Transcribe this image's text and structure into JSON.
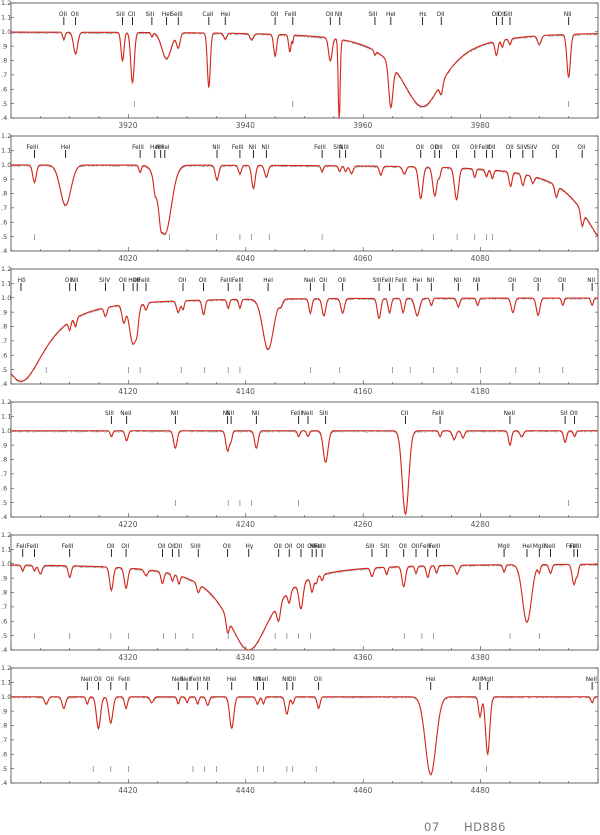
{
  "footer": {
    "number": "07",
    "star": "HD886"
  },
  "colors": {
    "observed": "#8a8a8a",
    "model": "#d8261b",
    "axis": "#444444"
  },
  "chart_data": [
    {
      "type": "line",
      "xlim": [
        3900,
        4000
      ],
      "ylim": [
        0.4,
        1.2
      ],
      "yticks": [
        0.4,
        0.5,
        0.6,
        0.7,
        0.8,
        0.9,
        1.0,
        1.1,
        1.2
      ],
      "xticks": [
        3920,
        3940,
        3960,
        3980
      ],
      "lines": [
        {
          "x": 3909.0,
          "label": "OII",
          "w": 0.2,
          "d": 0.05
        },
        {
          "x": 3911.0,
          "label": "OII",
          "w": 0.35,
          "d": 0.15
        },
        {
          "x": 3919.0,
          "label": "SiII",
          "w": 0.25,
          "d": 0.2
        },
        {
          "x": 3920.7,
          "label": "CII",
          "w": 0.3,
          "d": 0.35
        },
        {
          "x": 3924.0,
          "label": "SiII",
          "w": 0.15,
          "d": 0.03
        },
        {
          "x": 3926.5,
          "label": "HeI",
          "w": 0.8,
          "d": 0.18
        },
        {
          "x": 3928.5,
          "label": "SeIII",
          "w": 0.3,
          "d": 0.1
        },
        {
          "x": 3933.7,
          "label": "CaII",
          "w": 0.25,
          "d": 0.38
        },
        {
          "x": 3936.5,
          "label": "HeI",
          "w": 0.25,
          "d": 0.04
        },
        {
          "x": 3945.0,
          "label": "OII",
          "w": 0.25,
          "d": 0.15
        },
        {
          "x": 3948.0,
          "label": "FeIII",
          "w": 0.1,
          "d": 0.05
        },
        {
          "x": 3954.4,
          "label": "OII",
          "w": 0.3,
          "d": 0.16
        },
        {
          "x": 3956.0,
          "label": "NII",
          "w": 0.2,
          "d": 0.06
        },
        {
          "x": 3962.0,
          "label": "SIII",
          "w": 0.15,
          "d": 0.03
        },
        {
          "x": 3964.7,
          "label": "HeI",
          "w": 0.35,
          "d": 0.3
        },
        {
          "x": 3970.1,
          "label": "Hε",
          "w": 4.5,
          "d": 0.52
        },
        {
          "x": 3973.3,
          "label": "OII",
          "w": 0.25,
          "d": 0.08
        },
        {
          "x": 3982.7,
          "label": "OII",
          "w": 0.25,
          "d": 0.1
        },
        {
          "x": 3983.7,
          "label": "OII",
          "w": 0.2,
          "d": 0.05
        },
        {
          "x": 3985.0,
          "label": "SIII",
          "w": 0.2,
          "d": 0.04
        },
        {
          "x": 3995.0,
          "label": "NII",
          "w": 0.3,
          "d": 0.3
        }
      ],
      "extra_dips": [
        [
          3955.9,
          0.15,
          0.55
        ],
        [
          3947.5,
          0.2,
          0.12
        ],
        [
          3990.0,
          0.3,
          0.06
        ],
        [
          3941.0,
          0.3,
          0.04
        ]
      ],
      "marks": [
        3921,
        3948,
        3995
      ]
    },
    {
      "type": "line",
      "xlim": [
        4000,
        4100
      ],
      "ylim": [
        0.4,
        1.2
      ],
      "yticks": [
        0.4,
        0.5,
        0.6,
        0.7,
        0.8,
        0.9,
        1.0,
        1.1,
        1.2
      ],
      "xticks": [
        4020,
        4040,
        4060,
        4080
      ],
      "lines": [
        {
          "x": 4004.0,
          "label": "FeIII",
          "w": 0.3,
          "d": 0.12
        },
        {
          "x": 4009.3,
          "label": "HeI",
          "w": 0.9,
          "d": 0.28
        },
        {
          "x": 4022.0,
          "label": "FeIII",
          "w": 0.2,
          "d": 0.05
        },
        {
          "x": 4026.2,
          "label": "HeI",
          "w": 1.1,
          "d": 0.48
        },
        {
          "x": 4024.5,
          "label": "HeI",
          "w": 0.2,
          "d": 0.06
        },
        {
          "x": 4025.5,
          "label": "NII",
          "w": 0.2,
          "d": 0.06
        },
        {
          "x": 4035.1,
          "label": "NII",
          "w": 0.3,
          "d": 0.1
        },
        {
          "x": 4039.0,
          "label": "FeIII",
          "w": 0.25,
          "d": 0.06
        },
        {
          "x": 4041.3,
          "label": "NII",
          "w": 0.3,
          "d": 0.16
        },
        {
          "x": 4043.5,
          "label": "NII",
          "w": 0.3,
          "d": 0.08
        },
        {
          "x": 4053.0,
          "label": "FeIII",
          "w": 0.2,
          "d": 0.04
        },
        {
          "x": 4056.0,
          "label": "SIII",
          "w": 0.2,
          "d": 0.04
        },
        {
          "x": 4057.0,
          "label": "NIII",
          "w": 0.2,
          "d": 0.04
        },
        {
          "x": 4063.0,
          "label": "OII",
          "w": 0.25,
          "d": 0.06
        },
        {
          "x": 4069.8,
          "label": "OII",
          "w": 0.35,
          "d": 0.22
        },
        {
          "x": 4072.2,
          "label": "OII",
          "w": 0.35,
          "d": 0.2
        },
        {
          "x": 4073.0,
          "label": "OII",
          "w": 0.2,
          "d": 0.06
        },
        {
          "x": 4075.9,
          "label": "OII",
          "w": 0.35,
          "d": 0.22
        },
        {
          "x": 4079.0,
          "label": "OII",
          "w": 0.2,
          "d": 0.06
        },
        {
          "x": 4081.0,
          "label": "FeIII",
          "w": 0.2,
          "d": 0.05
        },
        {
          "x": 4082.0,
          "label": "OII",
          "w": 0.2,
          "d": 0.06
        },
        {
          "x": 4085.1,
          "label": "OII",
          "w": 0.25,
          "d": 0.1
        },
        {
          "x": 4087.2,
          "label": "SiIV",
          "w": 0.25,
          "d": 0.08
        },
        {
          "x": 4088.9,
          "label": "SiIV",
          "w": 0.25,
          "d": 0.05
        },
        {
          "x": 4092.9,
          "label": "OII",
          "w": 0.25,
          "d": 0.08
        },
        {
          "x": 4097.3,
          "label": "OII",
          "w": 0.25,
          "d": 0.1
        }
      ],
      "extra_dips": [
        [
          4101.7,
          5.0,
          0.55
        ],
        [
          4058.0,
          0.3,
          0.05
        ],
        [
          4067.0,
          0.3,
          0.05
        ]
      ],
      "marks": [
        4004,
        4027,
        4035,
        4039,
        4041,
        4044,
        4053,
        4072,
        4076,
        4079,
        4081,
        4082
      ]
    },
    {
      "type": "line",
      "xlim": [
        4100,
        4200
      ],
      "ylim": [
        0.4,
        1.2
      ],
      "yticks": [
        0.4,
        0.5,
        0.6,
        0.7,
        0.8,
        0.9,
        1.0,
        1.1,
        1.2
      ],
      "xticks": [
        4120,
        4140,
        4160,
        4180
      ],
      "lines": [
        {
          "x": 4101.7,
          "label": "Hδ",
          "w": 5.0,
          "d": 0.58
        },
        {
          "x": 4110.0,
          "label": "OII",
          "w": 0.2,
          "d": 0.06
        },
        {
          "x": 4111.0,
          "label": "NII",
          "w": 0.2,
          "d": 0.06
        },
        {
          "x": 4116.1,
          "label": "SiIV",
          "w": 0.25,
          "d": 0.06
        },
        {
          "x": 4119.2,
          "label": "OII",
          "w": 0.3,
          "d": 0.12
        },
        {
          "x": 4120.8,
          "label": "HeI",
          "w": 0.6,
          "d": 0.28
        },
        {
          "x": 4121.5,
          "label": "OII",
          "w": 0.25,
          "d": 0.08
        },
        {
          "x": 4123.0,
          "label": "FeIII",
          "w": 0.25,
          "d": 0.05
        },
        {
          "x": 4129.3,
          "label": "OII",
          "w": 0.2,
          "d": 0.06
        },
        {
          "x": 4132.8,
          "label": "OII",
          "w": 0.25,
          "d": 0.1
        },
        {
          "x": 4137.0,
          "label": "FeIII",
          "w": 0.2,
          "d": 0.06
        },
        {
          "x": 4139.0,
          "label": "FeIII",
          "w": 0.2,
          "d": 0.06
        },
        {
          "x": 4143.8,
          "label": "HeI",
          "w": 0.9,
          "d": 0.35
        },
        {
          "x": 4151.0,
          "label": "NeII",
          "w": 0.25,
          "d": 0.1
        },
        {
          "x": 4153.3,
          "label": "OII",
          "w": 0.3,
          "d": 0.12
        },
        {
          "x": 4156.5,
          "label": "OII",
          "w": 0.3,
          "d": 0.1
        },
        {
          "x": 4162.7,
          "label": "SIII",
          "w": 0.3,
          "d": 0.14
        },
        {
          "x": 4164.5,
          "label": "FeIII",
          "w": 0.25,
          "d": 0.1
        },
        {
          "x": 4166.8,
          "label": "FeIII",
          "w": 0.25,
          "d": 0.1
        },
        {
          "x": 4169.2,
          "label": "HeI",
          "w": 0.4,
          "d": 0.12
        },
        {
          "x": 4171.6,
          "label": "NII",
          "w": 0.2,
          "d": 0.05
        },
        {
          "x": 4176.2,
          "label": "NII",
          "w": 0.25,
          "d": 0.06
        },
        {
          "x": 4179.5,
          "label": "NII",
          "w": 0.2,
          "d": 0.05
        },
        {
          "x": 4185.5,
          "label": "OII",
          "w": 0.3,
          "d": 0.1
        },
        {
          "x": 4189.8,
          "label": "OII",
          "w": 0.3,
          "d": 0.12
        },
        {
          "x": 4194.0,
          "label": "OII",
          "w": 0.2,
          "d": 0.05
        },
        {
          "x": 4199.0,
          "label": "NII",
          "w": 0.2,
          "d": 0.05
        }
      ],
      "extra_dips": [
        [
          4128.5,
          0.3,
          0.08
        ],
        [
          4146.0,
          0.3,
          0.04
        ]
      ],
      "marks": [
        4106,
        4120,
        4122,
        4129,
        4133,
        4137,
        4139,
        4151,
        4156,
        4165,
        4168,
        4172,
        4176,
        4180,
        4186,
        4190,
        4194
      ]
    },
    {
      "type": "line",
      "xlim": [
        4200,
        4300
      ],
      "ylim": [
        0.4,
        1.2
      ],
      "yticks": [
        0.4,
        0.5,
        0.6,
        0.7,
        0.8,
        0.9,
        1.0,
        1.1,
        1.2
      ],
      "xticks": [
        4220,
        4240,
        4260,
        4280
      ],
      "lines": [
        {
          "x": 4217.1,
          "label": "SIII",
          "w": 0.2,
          "d": 0.04
        },
        {
          "x": 4219.7,
          "label": "NeII",
          "w": 0.25,
          "d": 0.07
        },
        {
          "x": 4228.0,
          "label": "NII",
          "w": 0.3,
          "d": 0.12
        },
        {
          "x": 4236.9,
          "label": "NII",
          "w": 0.3,
          "d": 0.14
        },
        {
          "x": 4237.5,
          "label": "NII",
          "w": 0.2,
          "d": 0.06
        },
        {
          "x": 4241.8,
          "label": "NII",
          "w": 0.3,
          "d": 0.12
        },
        {
          "x": 4249.0,
          "label": "FeIII",
          "w": 0.2,
          "d": 0.04
        },
        {
          "x": 4250.6,
          "label": "NeII",
          "w": 0.2,
          "d": 0.04
        },
        {
          "x": 4253.6,
          "label": "SIII",
          "w": 0.4,
          "d": 0.22
        },
        {
          "x": 4267.2,
          "label": "CII",
          "w": 0.55,
          "d": 0.58
        },
        {
          "x": 4273.1,
          "label": "FeIII",
          "w": 0.2,
          "d": 0.04
        },
        {
          "x": 4285.0,
          "label": "NeII",
          "w": 0.25,
          "d": 0.1
        },
        {
          "x": 4294.4,
          "label": "SII",
          "w": 0.25,
          "d": 0.08
        },
        {
          "x": 4296.0,
          "label": "OII",
          "w": 0.2,
          "d": 0.04
        }
      ],
      "extra_dips": [
        [
          4275.5,
          0.3,
          0.06
        ],
        [
          4277.0,
          0.25,
          0.05
        ],
        [
          4287.0,
          0.3,
          0.04
        ]
      ],
      "marks": [
        4228,
        4237,
        4239,
        4241,
        4249,
        4295
      ]
    },
    {
      "type": "line",
      "xlim": [
        4300,
        4400
      ],
      "ylim": [
        0.4,
        1.2
      ],
      "yticks": [
        0.4,
        0.5,
        0.6,
        0.7,
        0.8,
        0.9,
        1.0,
        1.1,
        1.2
      ],
      "xticks": [
        4320,
        4340,
        4360,
        4380
      ],
      "lines": [
        {
          "x": 4302.0,
          "label": "FeII",
          "w": 0.2,
          "d": 0.04
        },
        {
          "x": 4304.0,
          "label": "FeIII",
          "w": 0.2,
          "d": 0.04
        },
        {
          "x": 4310.0,
          "label": "FeIII",
          "w": 0.25,
          "d": 0.08
        },
        {
          "x": 4317.1,
          "label": "OII",
          "w": 0.3,
          "d": 0.16
        },
        {
          "x": 4319.6,
          "label": "OII",
          "w": 0.3,
          "d": 0.14
        },
        {
          "x": 4325.8,
          "label": "OII",
          "w": 0.25,
          "d": 0.08
        },
        {
          "x": 4327.5,
          "label": "OII",
          "w": 0.2,
          "d": 0.05
        },
        {
          "x": 4328.6,
          "label": "OII",
          "w": 0.2,
          "d": 0.06
        },
        {
          "x": 4331.9,
          "label": "SiIII",
          "w": 0.25,
          "d": 0.06
        },
        {
          "x": 4336.9,
          "label": "OII",
          "w": 0.25,
          "d": 0.1
        },
        {
          "x": 4340.5,
          "label": "Hγ",
          "w": 4.5,
          "d": 0.6
        },
        {
          "x": 4345.6,
          "label": "OII",
          "w": 0.3,
          "d": 0.12
        },
        {
          "x": 4347.4,
          "label": "OII",
          "w": 0.25,
          "d": 0.08
        },
        {
          "x": 4349.4,
          "label": "OII",
          "w": 0.35,
          "d": 0.18
        },
        {
          "x": 4351.3,
          "label": "OII",
          "w": 0.25,
          "d": 0.1
        },
        {
          "x": 4352.0,
          "label": "NeII",
          "w": 0.2,
          "d": 0.05
        },
        {
          "x": 4353.0,
          "label": "FeIII",
          "w": 0.2,
          "d": 0.04
        },
        {
          "x": 4361.5,
          "label": "SIII",
          "w": 0.25,
          "d": 0.06
        },
        {
          "x": 4364.0,
          "label": "SIII",
          "w": 0.2,
          "d": 0.05
        },
        {
          "x": 4366.9,
          "label": "OII",
          "w": 0.3,
          "d": 0.14
        },
        {
          "x": 4369.0,
          "label": "OII",
          "w": 0.2,
          "d": 0.05
        },
        {
          "x": 4371.0,
          "label": "FeIII",
          "w": 0.25,
          "d": 0.08
        },
        {
          "x": 4372.5,
          "label": "FeIII",
          "w": 0.2,
          "d": 0.05
        },
        {
          "x": 4384.0,
          "label": "MgII",
          "w": 0.2,
          "d": 0.05
        },
        {
          "x": 4387.9,
          "label": "HeI",
          "w": 0.75,
          "d": 0.4
        },
        {
          "x": 4390.0,
          "label": "MgII",
          "w": 0.2,
          "d": 0.05
        },
        {
          "x": 4391.9,
          "label": "NeII",
          "w": 0.25,
          "d": 0.06
        },
        {
          "x": 4395.9,
          "label": "FeIII",
          "w": 0.3,
          "d": 0.14
        },
        {
          "x": 4396.5,
          "label": "FeIII",
          "w": 0.2,
          "d": 0.06
        }
      ],
      "extra_dips": [
        [
          4323.0,
          0.3,
          0.04
        ],
        [
          4376.0,
          0.3,
          0.06
        ],
        [
          4305.0,
          0.3,
          0.06
        ]
      ],
      "marks": [
        4304,
        4310,
        4317,
        4320,
        4326,
        4328,
        4331,
        4337,
        4345,
        4347,
        4349,
        4351,
        4367,
        4370,
        4372,
        4385,
        4390
      ]
    },
    {
      "type": "line",
      "xlim": [
        4400,
        4500
      ],
      "ylim": [
        0.4,
        1.2
      ],
      "yticks": [
        0.4,
        0.5,
        0.6,
        0.7,
        0.8,
        0.9,
        1.0,
        1.1,
        1.2
      ],
      "xticks": [
        4420,
        4440,
        4460,
        4480
      ],
      "lines": [
        {
          "x": 4413.0,
          "label": "NeII",
          "w": 0.2,
          "d": 0.05
        },
        {
          "x": 4414.9,
          "label": "OII",
          "w": 0.35,
          "d": 0.22
        },
        {
          "x": 4417.0,
          "label": "OII",
          "w": 0.35,
          "d": 0.18
        },
        {
          "x": 4419.6,
          "label": "FeIII",
          "w": 0.25,
          "d": 0.08
        },
        {
          "x": 4428.5,
          "label": "NeII",
          "w": 0.2,
          "d": 0.05
        },
        {
          "x": 4430.0,
          "label": "NeII",
          "w": 0.2,
          "d": 0.04
        },
        {
          "x": 4431.8,
          "label": "FeIII",
          "w": 0.2,
          "d": 0.05
        },
        {
          "x": 4433.5,
          "label": "NII",
          "w": 0.25,
          "d": 0.06
        },
        {
          "x": 4437.6,
          "label": "HeI",
          "w": 0.35,
          "d": 0.22
        },
        {
          "x": 4442.0,
          "label": "NII",
          "w": 0.25,
          "d": 0.05
        },
        {
          "x": 4443.0,
          "label": "NeII",
          "w": 0.2,
          "d": 0.05
        },
        {
          "x": 4447.0,
          "label": "NII",
          "w": 0.3,
          "d": 0.12
        },
        {
          "x": 4448.0,
          "label": "OII",
          "w": 0.2,
          "d": 0.05
        },
        {
          "x": 4452.4,
          "label": "OII",
          "w": 0.25,
          "d": 0.08
        },
        {
          "x": 4471.5,
          "label": "HeI",
          "w": 0.9,
          "d": 0.54
        },
        {
          "x": 4479.9,
          "label": "AlIII",
          "w": 0.25,
          "d": 0.14
        },
        {
          "x": 4481.2,
          "label": "MgII",
          "w": 0.35,
          "d": 0.4
        },
        {
          "x": 4499.0,
          "label": "NeII",
          "w": 0.2,
          "d": 0.04
        }
      ],
      "extra_dips": [
        [
          4406.0,
          0.3,
          0.05
        ],
        [
          4409.0,
          0.3,
          0.08
        ],
        [
          4424.0,
          0.3,
          0.04
        ]
      ],
      "marks": [
        4414,
        4417,
        4420,
        4431,
        4433,
        4435,
        4442,
        4443,
        4447,
        4448,
        4452,
        4481
      ]
    }
  ]
}
